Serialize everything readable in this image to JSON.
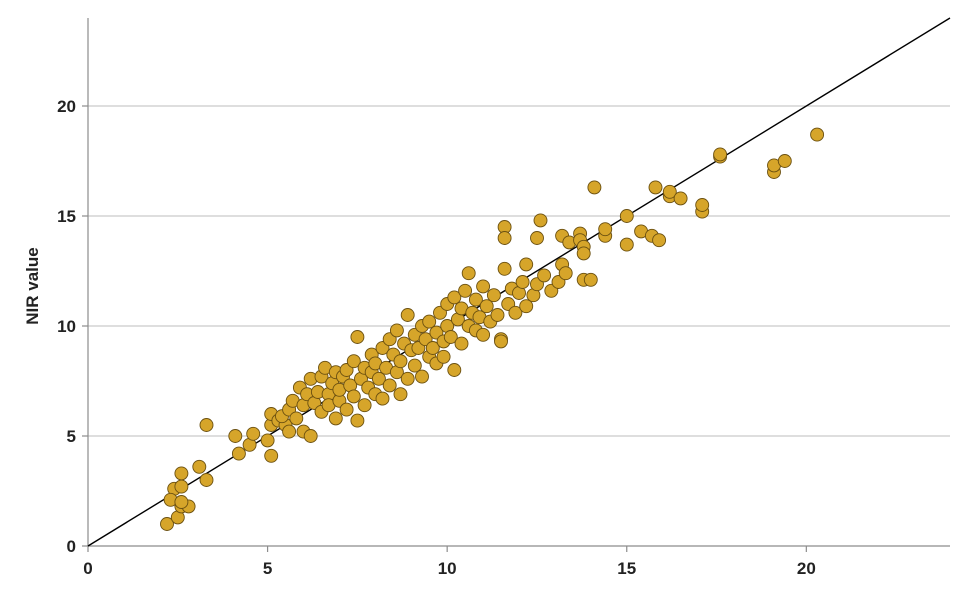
{
  "chart_data": {
    "type": "scatter",
    "title": "",
    "xlabel": "",
    "ylabel": "NIR  value",
    "xlim": [
      0,
      24
    ],
    "ylim": [
      0,
      24
    ],
    "x_ticks": [
      "0",
      "5",
      "10",
      "15",
      "20"
    ],
    "y_ticks": [
      "0",
      "5",
      "10",
      "15",
      "20"
    ],
    "grid": "horizontal",
    "legend": "none",
    "reference_line": {
      "x": [
        0,
        24
      ],
      "y": [
        0,
        24
      ]
    },
    "colors": {
      "marker_fill": "#d6a52a",
      "marker_stroke": "#6b5010",
      "grid": "#bdbdbd",
      "axis": "#8c8c8c",
      "line": "#000000"
    },
    "series": [
      {
        "points": [
          [
            2.2,
            1.0
          ],
          [
            2.5,
            1.3
          ],
          [
            2.6,
            1.8
          ],
          [
            2.8,
            1.8
          ],
          [
            2.4,
            2.6
          ],
          [
            2.3,
            2.1
          ],
          [
            2.6,
            2.0
          ],
          [
            2.6,
            2.7
          ],
          [
            2.6,
            3.3
          ],
          [
            3.1,
            3.6
          ],
          [
            3.3,
            3.0
          ],
          [
            3.3,
            5.5
          ],
          [
            4.1,
            5.0
          ],
          [
            4.2,
            4.2
          ],
          [
            4.5,
            4.6
          ],
          [
            4.6,
            5.1
          ],
          [
            5.0,
            4.8
          ],
          [
            5.1,
            4.1
          ],
          [
            5.1,
            5.5
          ],
          [
            5.1,
            6.0
          ],
          [
            5.3,
            5.7
          ],
          [
            5.5,
            5.5
          ],
          [
            5.4,
            5.9
          ],
          [
            5.6,
            5.2
          ],
          [
            5.6,
            6.2
          ],
          [
            5.7,
            6.6
          ],
          [
            5.8,
            5.8
          ],
          [
            5.9,
            7.2
          ],
          [
            6.0,
            6.4
          ],
          [
            6.0,
            5.2
          ],
          [
            6.1,
            6.9
          ],
          [
            6.2,
            7.6
          ],
          [
            6.2,
            5.0
          ],
          [
            6.3,
            6.5
          ],
          [
            6.4,
            7.0
          ],
          [
            6.5,
            7.7
          ],
          [
            6.5,
            6.1
          ],
          [
            6.6,
            8.1
          ],
          [
            6.7,
            6.9
          ],
          [
            6.7,
            6.4
          ],
          [
            6.8,
            7.4
          ],
          [
            6.9,
            7.9
          ],
          [
            6.9,
            5.8
          ],
          [
            7.0,
            6.6
          ],
          [
            7.0,
            7.1
          ],
          [
            7.1,
            7.7
          ],
          [
            7.2,
            6.2
          ],
          [
            7.2,
            8.0
          ],
          [
            7.3,
            7.3
          ],
          [
            7.4,
            6.8
          ],
          [
            7.4,
            8.4
          ],
          [
            7.5,
            9.5
          ],
          [
            7.5,
            5.7
          ],
          [
            7.6,
            7.6
          ],
          [
            7.7,
            8.1
          ],
          [
            7.7,
            6.4
          ],
          [
            7.8,
            7.2
          ],
          [
            7.9,
            8.7
          ],
          [
            7.9,
            7.9
          ],
          [
            8.0,
            6.9
          ],
          [
            8.0,
            8.3
          ],
          [
            8.1,
            7.6
          ],
          [
            8.2,
            9.0
          ],
          [
            8.2,
            6.7
          ],
          [
            8.3,
            8.1
          ],
          [
            8.4,
            9.4
          ],
          [
            8.4,
            7.3
          ],
          [
            8.5,
            8.7
          ],
          [
            8.6,
            9.8
          ],
          [
            8.6,
            7.9
          ],
          [
            8.7,
            8.4
          ],
          [
            8.7,
            6.9
          ],
          [
            8.8,
            9.2
          ],
          [
            8.9,
            10.5
          ],
          [
            8.9,
            7.6
          ],
          [
            9.0,
            8.9
          ],
          [
            9.1,
            9.6
          ],
          [
            9.1,
            8.2
          ],
          [
            9.2,
            9.0
          ],
          [
            9.3,
            10.0
          ],
          [
            9.3,
            7.7
          ],
          [
            9.4,
            9.4
          ],
          [
            9.5,
            8.6
          ],
          [
            9.5,
            10.2
          ],
          [
            9.6,
            9.0
          ],
          [
            9.7,
            9.7
          ],
          [
            9.7,
            8.3
          ],
          [
            9.8,
            10.6
          ],
          [
            9.9,
            9.3
          ],
          [
            9.9,
            8.6
          ],
          [
            10.0,
            11.0
          ],
          [
            10.0,
            10.0
          ],
          [
            10.1,
            9.5
          ],
          [
            10.2,
            11.3
          ],
          [
            10.2,
            8.0
          ],
          [
            10.3,
            10.3
          ],
          [
            10.4,
            10.8
          ],
          [
            10.4,
            9.2
          ],
          [
            10.5,
            11.6
          ],
          [
            10.6,
            10.0
          ],
          [
            10.6,
            12.4
          ],
          [
            10.7,
            10.6
          ],
          [
            10.8,
            9.8
          ],
          [
            10.8,
            11.2
          ],
          [
            10.9,
            10.4
          ],
          [
            11.0,
            11.8
          ],
          [
            11.0,
            9.6
          ],
          [
            11.1,
            10.9
          ],
          [
            11.2,
            10.2
          ],
          [
            11.3,
            11.4
          ],
          [
            11.4,
            10.5
          ],
          [
            11.5,
            9.4
          ],
          [
            11.5,
            9.3
          ],
          [
            11.6,
            14.5
          ],
          [
            11.6,
            14.0
          ],
          [
            11.6,
            12.6
          ],
          [
            11.7,
            11.0
          ],
          [
            11.8,
            11.7
          ],
          [
            11.9,
            10.6
          ],
          [
            12.0,
            11.5
          ],
          [
            12.1,
            12.0
          ],
          [
            12.2,
            10.9
          ],
          [
            12.2,
            12.8
          ],
          [
            12.4,
            11.4
          ],
          [
            12.5,
            14.0
          ],
          [
            12.5,
            11.9
          ],
          [
            12.6,
            14.8
          ],
          [
            12.7,
            12.3
          ],
          [
            12.9,
            11.6
          ],
          [
            13.1,
            12.0
          ],
          [
            13.2,
            12.8
          ],
          [
            13.2,
            14.1
          ],
          [
            13.3,
            12.4
          ],
          [
            13.4,
            13.8
          ],
          [
            13.7,
            14.2
          ],
          [
            13.7,
            13.9
          ],
          [
            13.8,
            13.6
          ],
          [
            13.8,
            13.3
          ],
          [
            13.8,
            12.1
          ],
          [
            14.0,
            12.1
          ],
          [
            14.1,
            16.3
          ],
          [
            14.4,
            14.1
          ],
          [
            14.4,
            14.4
          ],
          [
            15.0,
            15.0
          ],
          [
            15.0,
            13.7
          ],
          [
            15.4,
            14.3
          ],
          [
            15.7,
            14.1
          ],
          [
            15.8,
            16.3
          ],
          [
            15.9,
            13.9
          ],
          [
            16.2,
            15.9
          ],
          [
            16.2,
            16.1
          ],
          [
            16.5,
            15.8
          ],
          [
            17.1,
            15.2
          ],
          [
            17.1,
            15.5
          ],
          [
            17.6,
            17.7
          ],
          [
            17.6,
            17.8
          ],
          [
            19.1,
            17.0
          ],
          [
            19.1,
            17.3
          ],
          [
            19.4,
            17.5
          ],
          [
            20.3,
            18.7
          ]
        ]
      }
    ]
  }
}
